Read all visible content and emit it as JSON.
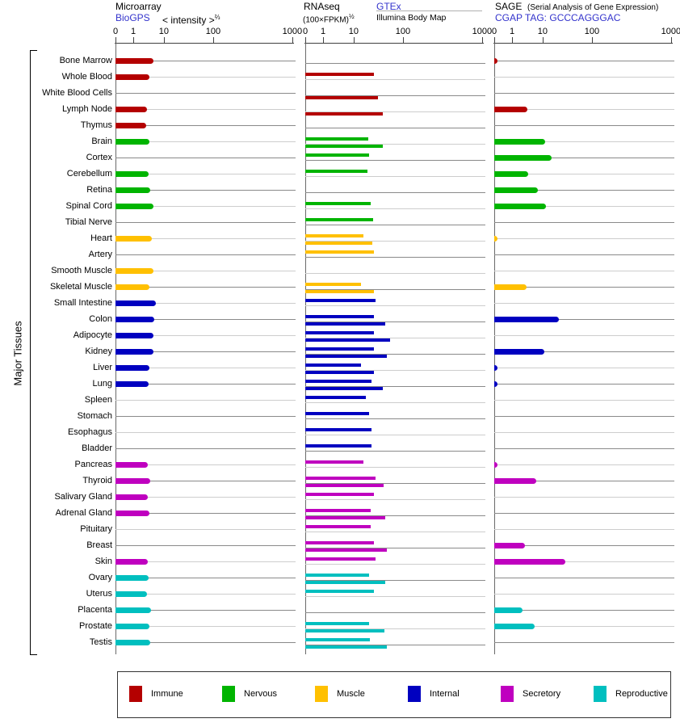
{
  "y_axis_label": "Major Tissues",
  "headers": {
    "microarray": {
      "title": "Microarray",
      "link": "BioGPS",
      "note": "< intensity >",
      "note_exp": "⅔"
    },
    "rnaseq": {
      "title": "RNAseq",
      "unit": "(100×FPKM)",
      "unit_exp": "½",
      "link": "GTEx",
      "source2": "Illumina Body Map"
    },
    "sage": {
      "title": "SAGE",
      "title_note": "(Serial Analysis of Gene Expression)",
      "link": "CGAP TAG: GCCCAGGGAC"
    }
  },
  "x_ticks_labels": [
    "0",
    "1",
    "10",
    "100",
    "1000"
  ],
  "colors": {
    "Immune": "#b40000",
    "Nervous": "#00b400",
    "Muscle": "#ffc000",
    "Internal": "#0000c0",
    "Secretory": "#bf00bf",
    "Reproductive": "#00bfbf"
  },
  "legend": [
    {
      "label": "Immune",
      "color": "#b40000"
    },
    {
      "label": "Nervous",
      "color": "#00b400"
    },
    {
      "label": "Muscle",
      "color": "#ffc000"
    },
    {
      "label": "Internal",
      "color": "#0000c0"
    },
    {
      "label": "Secretory",
      "color": "#bf00bf"
    },
    {
      "label": "Reproductive",
      "color": "#00bfbf"
    }
  ],
  "chart_data": {
    "type": "bar",
    "orientation": "horizontal",
    "x_scale": "compressed log-like axis 0,1,10,100,1000",
    "xlim": [
      0,
      1000
    ],
    "x_ticks": [
      0,
      1,
      10,
      100,
      1000
    ],
    "categories": [
      "Bone Marrow",
      "Whole Blood",
      "White Blood Cells",
      "Lymph Node",
      "Thymus",
      "Brain",
      "Cortex",
      "Cerebellum",
      "Retina",
      "Spinal Cord",
      "Tibial Nerve",
      "Heart",
      "Artery",
      "Smooth Muscle",
      "Skeletal Muscle",
      "Small Intestine",
      "Colon",
      "Adipocyte",
      "Kidney",
      "Liver",
      "Lung",
      "Spleen",
      "Stomach",
      "Esophagus",
      "Bladder",
      "Pancreas",
      "Thyroid",
      "Salivary Gland",
      "Adrenal Gland",
      "Pituitary",
      "Breast",
      "Skin",
      "Ovary",
      "Uterus",
      "Placenta",
      "Prostate",
      "Testis"
    ],
    "category_groups": [
      "Immune",
      "Immune",
      "Immune",
      "Immune",
      "Immune",
      "Nervous",
      "Nervous",
      "Nervous",
      "Nervous",
      "Nervous",
      "Nervous",
      "Muscle",
      "Muscle",
      "Muscle",
      "Muscle",
      "Internal",
      "Internal",
      "Internal",
      "Internal",
      "Internal",
      "Internal",
      "Internal",
      "Internal",
      "Internal",
      "Internal",
      "Secretory",
      "Secretory",
      "Secretory",
      "Secretory",
      "Secretory",
      "Secretory",
      "Secretory",
      "Reproductive",
      "Reproductive",
      "Reproductive",
      "Reproductive",
      "Reproductive"
    ],
    "series": [
      {
        "name": "Microarray (BioGPS)",
        "panel": "microarray",
        "values": [
          4.8,
          3.6,
          null,
          2.9,
          2.7,
          3.6,
          null,
          3.4,
          3.7,
          4.6,
          null,
          4.3,
          null,
          4.6,
          3.6,
          5.7,
          4.9,
          4.8,
          4.6,
          3.6,
          3.4,
          null,
          null,
          null,
          null,
          3.1,
          3.8,
          3.1,
          3.6,
          null,
          null,
          3.1,
          3.4,
          2.9,
          3.9,
          3.6,
          3.7
        ]
      },
      {
        "name": "RNAseq GTEx",
        "panel": "rnaseq",
        "values": [
          null,
          29,
          null,
          null,
          null,
          22,
          23.5,
          21,
          null,
          25,
          28,
          17.5,
          30,
          null,
          15.5,
          31.5,
          29,
          30,
          29,
          15.5,
          26,
          20,
          23,
          26.5,
          26,
          17.5,
          32,
          30,
          25,
          25,
          30,
          32,
          23.5,
          29,
          null,
          23.5,
          24.5
        ]
      },
      {
        "name": "RNAseq Illumina Body Map",
        "panel": "rnaseq",
        "values": [
          null,
          null,
          36,
          44,
          null,
          45,
          null,
          null,
          null,
          null,
          null,
          27,
          null,
          null,
          30,
          null,
          49,
          60,
          53,
          29,
          44,
          null,
          null,
          null,
          null,
          null,
          46,
          null,
          49,
          null,
          52,
          null,
          50,
          null,
          null,
          47,
          53
        ]
      },
      {
        "name": "SAGE (CGAP)",
        "panel": "sage",
        "values": [
          0.1,
          null,
          null,
          3.3,
          null,
          10.8,
          15.8,
          3.5,
          6.9,
          11.2,
          null,
          0.1,
          null,
          null,
          3.1,
          null,
          23,
          null,
          10.3,
          0.1,
          0.1,
          null,
          null,
          null,
          null,
          0.1,
          6.1,
          null,
          null,
          null,
          2.7,
          31,
          null,
          null,
          2.3,
          5.7,
          null
        ]
      }
    ]
  }
}
